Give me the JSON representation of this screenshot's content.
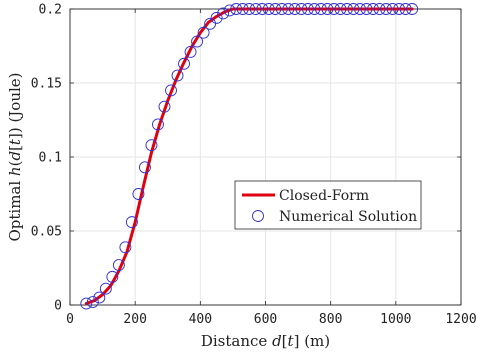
{
  "chart_data": {
    "type": "line",
    "xlabel": "Distance d[t] (m)",
    "ylabel": "Optimal h(d[t]) (Joule)",
    "xlim": [
      0,
      1200
    ],
    "ylim": [
      0,
      0.2
    ],
    "xticks": [
      "0",
      "200",
      "400",
      "600",
      "800",
      "1000",
      "1200"
    ],
    "yticks": [
      "0",
      "0.05",
      "0.1",
      "0.15",
      "0.2"
    ],
    "grid": true,
    "legend_position": "lower-right",
    "series": [
      {
        "name": "Closed-Form",
        "style": "solid line",
        "color": "#e0000f",
        "x": [
          50,
          75,
          100,
          125,
          150,
          175,
          200,
          225,
          250,
          275,
          300,
          325,
          350,
          375,
          400,
          425,
          450,
          475,
          500,
          550,
          600,
          700,
          800,
          900,
          1000,
          1050
        ],
        "y": [
          0.001,
          0.003,
          0.007,
          0.013,
          0.023,
          0.036,
          0.056,
          0.08,
          0.103,
          0.122,
          0.138,
          0.152,
          0.164,
          0.175,
          0.184,
          0.191,
          0.195,
          0.198,
          0.2,
          0.2,
          0.2,
          0.2,
          0.2,
          0.2,
          0.2,
          0.2
        ]
      },
      {
        "name": "Numerical Solution",
        "style": "circle markers",
        "color": "#3030d0",
        "x": [
          50,
          70,
          90,
          110,
          130,
          150,
          170,
          190,
          210,
          230,
          250,
          270,
          290,
          310,
          330,
          350,
          370,
          390,
          410,
          430,
          450,
          470,
          490,
          510,
          530,
          550,
          570,
          590,
          610,
          630,
          650,
          670,
          690,
          710,
          730,
          750,
          770,
          790,
          810,
          830,
          850,
          870,
          890,
          910,
          930,
          950,
          970,
          990,
          1010,
          1030,
          1050
        ],
        "y": [
          0.001,
          0.002,
          0.005,
          0.011,
          0.019,
          0.027,
          0.039,
          0.056,
          0.075,
          0.093,
          0.108,
          0.122,
          0.134,
          0.145,
          0.155,
          0.163,
          0.171,
          0.178,
          0.184,
          0.19,
          0.194,
          0.197,
          0.199,
          0.2,
          0.2,
          0.2,
          0.2,
          0.2,
          0.2,
          0.2,
          0.2,
          0.2,
          0.2,
          0.2,
          0.2,
          0.2,
          0.2,
          0.2,
          0.2,
          0.2,
          0.2,
          0.2,
          0.2,
          0.2,
          0.2,
          0.2,
          0.2,
          0.2,
          0.2,
          0.2,
          0.2
        ]
      }
    ]
  },
  "axis_labels": {
    "x_parts": [
      "Distance ",
      "d",
      "[",
      "t",
      "]",
      " (m)"
    ],
    "y_parts": [
      "Optimal ",
      "h",
      "(",
      "d",
      "[",
      "t",
      "]) (Joule)"
    ]
  }
}
